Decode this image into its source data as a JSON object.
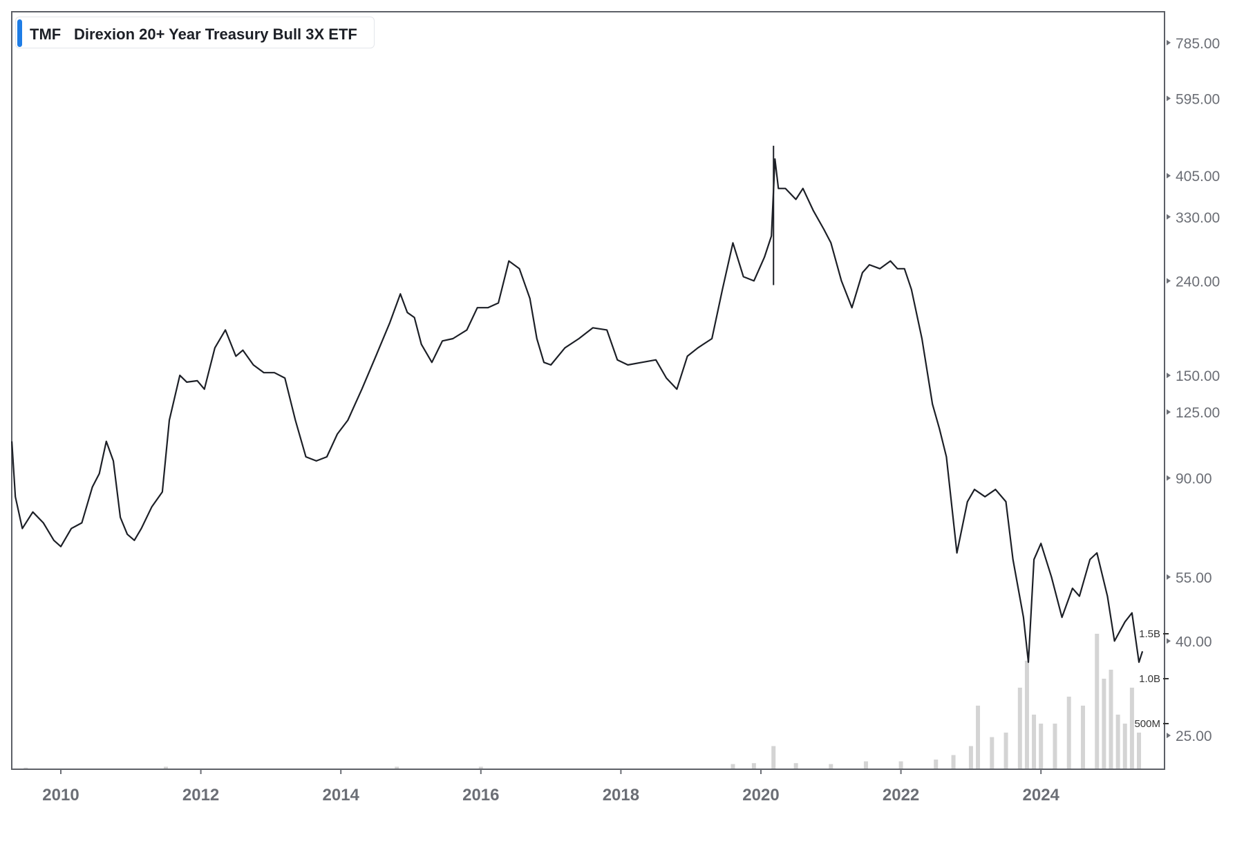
{
  "legend": {
    "ticker": "TMF",
    "name": "Direxion 20+ Year Treasury Bull 3X ETF",
    "accent_color": "#1e7de6"
  },
  "chart_data": {
    "type": "line",
    "title": "",
    "xlabel": "",
    "ylabel": "",
    "y_scale": "log",
    "ylim": [
      20,
      900
    ],
    "xlim": [
      2009.3,
      2025.85
    ],
    "x_ticks": [
      "2010",
      "2012",
      "2014",
      "2016",
      "2018",
      "2020",
      "2022",
      "2024"
    ],
    "y_ticks": [
      "785.00",
      "595.00",
      "405.00",
      "330.00",
      "240.00",
      "150.00",
      "125.00",
      "90.00",
      "55.00",
      "40.00",
      "25.00"
    ],
    "line_color": "#1c1f26",
    "series": [
      {
        "x": [
          2009.3,
          2009.35,
          2009.45,
          2009.6,
          2009.75,
          2009.9,
          2010.0,
          2010.15,
          2010.3,
          2010.45,
          2010.55,
          2010.65,
          2010.75,
          2010.85,
          2010.95,
          2011.05,
          2011.15,
          2011.3,
          2011.45,
          2011.55,
          2011.7,
          2011.8,
          2011.95,
          2012.05,
          2012.2,
          2012.35,
          2012.5,
          2012.6,
          2012.75,
          2012.9,
          2013.05,
          2013.2,
          2013.35,
          2013.5,
          2013.65,
          2013.8,
          2013.95,
          2014.1,
          2014.3,
          2014.5,
          2014.7,
          2014.85,
          2014.95,
          2015.05,
          2015.15,
          2015.3,
          2015.45,
          2015.6,
          2015.8,
          2015.95,
          2016.1,
          2016.25,
          2016.4,
          2016.55,
          2016.7,
          2016.8,
          2016.9,
          2017.0,
          2017.2,
          2017.4,
          2017.6,
          2017.8,
          2017.95,
          2018.1,
          2018.3,
          2018.5,
          2018.65,
          2018.8,
          2018.95,
          2019.1,
          2019.3,
          2019.45,
          2019.6,
          2019.75,
          2019.9,
          2020.05,
          2020.15,
          2020.2,
          2020.25,
          2020.35,
          2020.5,
          2020.6,
          2020.75,
          2020.9,
          2021.0,
          2021.15,
          2021.3,
          2021.45,
          2021.55,
          2021.7,
          2021.85,
          2021.95,
          2022.05,
          2022.15,
          2022.3,
          2022.45,
          2022.55,
          2022.65,
          2022.8,
          2022.95,
          2023.05,
          2023.2,
          2023.35,
          2023.5,
          2023.6,
          2023.75,
          2023.82,
          2023.9,
          2024.0,
          2024.15,
          2024.3,
          2024.45,
          2024.55,
          2024.7,
          2024.8,
          2024.95,
          2025.05,
          2025.2,
          2025.3,
          2025.4,
          2025.45
        ],
        "y": [
          108,
          82,
          70,
          76,
          72,
          66,
          64,
          70,
          72,
          86,
          92,
          108,
          98,
          74,
          68,
          66,
          70,
          78,
          84,
          120,
          150,
          145,
          146,
          140,
          172,
          188,
          165,
          170,
          158,
          152,
          152,
          148,
          120,
          100,
          98,
          100,
          112,
          120,
          140,
          165,
          195,
          225,
          205,
          200,
          175,
          160,
          178,
          180,
          188,
          210,
          210,
          215,
          265,
          255,
          220,
          180,
          160,
          158,
          172,
          180,
          190,
          188,
          162,
          158,
          160,
          162,
          148,
          140,
          165,
          172,
          180,
          230,
          290,
          245,
          240,
          270,
          300,
          440,
          380,
          380,
          360,
          380,
          340,
          310,
          290,
          240,
          210,
          250,
          260,
          255,
          265,
          255,
          255,
          230,
          180,
          130,
          115,
          100,
          62,
          80,
          85,
          82,
          85,
          80,
          60,
          45,
          36,
          60,
          65,
          55,
          45,
          52,
          50,
          60,
          62,
          50,
          40,
          44,
          46,
          36,
          38
        ],
        "ranges": [
          {
            "x": 2020.18,
            "low": 235,
            "high": 470
          }
        ]
      }
    ],
    "volume": {
      "axis_ticks": [
        "1.5B",
        "1.0B",
        "500M"
      ],
      "color": "#d4d4d4",
      "x": [
        2009.5,
        2011.5,
        2014.8,
        2016.0,
        2019.6,
        2019.9,
        2020.18,
        2020.5,
        2021.0,
        2021.5,
        2022.0,
        2022.5,
        2022.75,
        2023.0,
        2023.1,
        2023.3,
        2023.5,
        2023.7,
        2023.8,
        2023.9,
        2024.0,
        2024.2,
        2024.4,
        2024.6,
        2024.8,
        2024.9,
        2025.0,
        2025.1,
        2025.2,
        2025.3,
        2025.4
      ],
      "values": [
        0.01,
        0.02,
        0.02,
        0.02,
        0.05,
        0.06,
        0.25,
        0.06,
        0.05,
        0.08,
        0.08,
        0.1,
        0.15,
        0.25,
        0.7,
        0.35,
        0.4,
        0.9,
        1.2,
        0.6,
        0.5,
        0.5,
        0.8,
        0.7,
        1.5,
        1.0,
        1.1,
        0.6,
        0.5,
        0.9,
        0.4
      ],
      "max": 1.9
    }
  }
}
